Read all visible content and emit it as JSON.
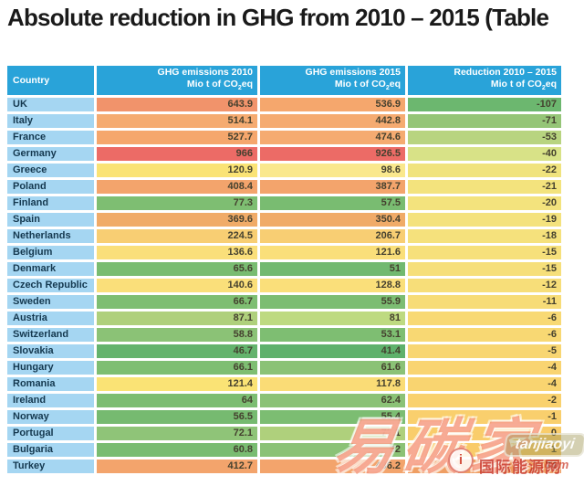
{
  "title": "Absolute reduction in GHG from 2010 – 2015 (Table",
  "colors": {
    "header_bg": "#29A3D9",
    "country_cell_bg": "#A5D6F2",
    "page_bg": "#FFFFFF",
    "title_color": "#1A1A1A"
  },
  "table": {
    "headers": {
      "country": "Country",
      "col2010_line1": "GHG emissions 2010",
      "col2015_line1": "GHG emissions 2015",
      "colred_line1": "Reduction 2010 – 2015",
      "unit_prefix": "Mio t of CO",
      "unit_sub": "2",
      "unit_suffix": "eq"
    },
    "rows": [
      {
        "country": "UK",
        "v2010": "643.9",
        "v2015": "536.9",
        "vred": "-107",
        "c2010": "#F1936B",
        "c2015": "#F5A76D",
        "cred": "#6CB76F"
      },
      {
        "country": "Italy",
        "v2010": "514.1",
        "v2015": "442.8",
        "vred": "-71",
        "c2010": "#F5AB71",
        "c2015": "#F5AB71",
        "cred": "#95C577"
      },
      {
        "country": "France",
        "v2010": "527.7",
        "v2015": "474.6",
        "vred": "-53",
        "c2010": "#F5A76D",
        "c2015": "#F5AB71",
        "cred": "#B8D480"
      },
      {
        "country": "Germany",
        "v2010": "966",
        "v2015": "926.5",
        "vred": "-40",
        "c2010": "#EC6B66",
        "c2015": "#EC6B66",
        "cred": "#D8E287"
      },
      {
        "country": "Greece",
        "v2010": "120.9",
        "v2015": "98.6",
        "vred": "-22",
        "c2010": "#FAE375",
        "c2015": "#FAE88D",
        "cred": "#F0E37E"
      },
      {
        "country": "Poland",
        "v2010": "408.4",
        "v2015": "387.7",
        "vred": "-21",
        "c2010": "#F3A46C",
        "c2015": "#F3A46C",
        "cred": "#F3E37D"
      },
      {
        "country": "Finland",
        "v2010": "77.3",
        "v2015": "57.5",
        "vred": "-20",
        "c2010": "#7EBE72",
        "c2015": "#79BC71",
        "cred": "#F3E37D"
      },
      {
        "country": "Spain",
        "v2010": "369.6",
        "v2015": "350.4",
        "vred": "-19",
        "c2010": "#F0AB68",
        "c2015": "#F0AB68",
        "cred": "#F4E27D"
      },
      {
        "country": "Netherlands",
        "v2010": "224.5",
        "v2015": "206.7",
        "vred": "-18",
        "c2010": "#F8CE73",
        "c2015": "#F8CE73",
        "cred": "#F5E17C"
      },
      {
        "country": "Belgium",
        "v2010": "136.6",
        "v2015": "121.6",
        "vred": "-15",
        "c2010": "#FADF7A",
        "c2015": "#FADF7A",
        "cred": "#F6E07B"
      },
      {
        "country": "Denmark",
        "v2010": "65.6",
        "v2015": "51",
        "vred": "-15",
        "c2010": "#79BC71",
        "c2015": "#72B970",
        "cred": "#F6DF7A"
      },
      {
        "country": "Czech Republic",
        "v2010": "140.6",
        "v2015": "128.8",
        "vred": "-12",
        "c2010": "#FADF7A",
        "c2015": "#FADF7A",
        "cred": "#F7DE79"
      },
      {
        "country": "Sweden",
        "v2010": "66.7",
        "v2015": "55.9",
        "vred": "-11",
        "c2010": "#7EBE72",
        "c2015": "#7CBD72",
        "cred": "#F7DC77"
      },
      {
        "country": "Austria",
        "v2010": "87.1",
        "v2015": "81",
        "vred": "-6",
        "c2010": "#AFD07C",
        "c2015": "#BEDA81",
        "cred": "#F8D974"
      },
      {
        "country": "Switzerland",
        "v2010": "58.8",
        "v2015": "53.1",
        "vred": "-6",
        "c2010": "#8BC276",
        "c2015": "#7EBE72",
        "cred": "#F8D873"
      },
      {
        "country": "Slovakia",
        "v2010": "46.7",
        "v2015": "41.4",
        "vred": "-5",
        "c2010": "#64B36D",
        "c2015": "#5FB16C",
        "cred": "#F8D672"
      },
      {
        "country": "Hungary",
        "v2010": "66.1",
        "v2015": "61.6",
        "vred": "-4",
        "c2010": "#7EBE72",
        "c2015": "#8BC276",
        "cred": "#F9D471"
      },
      {
        "country": "Romania",
        "v2010": "121.4",
        "v2015": "117.8",
        "vred": "-4",
        "c2010": "#FAE375",
        "c2015": "#FADC76",
        "cred": "#F9D470"
      },
      {
        "country": "Ireland",
        "v2010": "64",
        "v2015": "62.4",
        "vred": "-2",
        "c2010": "#7CBD72",
        "c2015": "#8BC276",
        "cred": "#F9D16E"
      },
      {
        "country": "Norway",
        "v2010": "56.5",
        "v2015": "55.4",
        "vred": "-1",
        "c2010": "#76BA70",
        "c2015": "#7CBD72",
        "cred": "#F9CF6D"
      },
      {
        "country": "Portugal",
        "v2010": "72.1",
        "v2015": "72.1",
        "vred": "0",
        "c2010": "#8FC478",
        "c2015": "#AFD07C",
        "cred": "#F9CD6B"
      },
      {
        "country": "Bulgaria",
        "v2010": "60.8",
        "v2015": "62",
        "vred": "1",
        "c2010": "#79BC71",
        "c2015": "#8BC276",
        "cred": "#F9CB69"
      },
      {
        "country": "Turkey",
        "v2010": "412.7",
        "v2015": "486.2",
        "vred": "74",
        "c2010": "#F3A46C",
        "c2015": "#F3A46C",
        "cred": "#EF9E63"
      }
    ]
  },
  "watermark": {
    "brand": "易碳家",
    "info_glyph": "i",
    "tagline": "国际能源网",
    "site": "tanjiaoyi",
    "domain_suffix": ".com"
  },
  "chart_data": {
    "type": "table",
    "title": "Absolute reduction in GHG from 2010 – 2015 (Table",
    "columns": [
      "Country",
      "GHG emissions 2010 Mio t of CO2eq",
      "GHG emissions 2015 Mio t of CO2eq",
      "Reduction 2010 – 2015 Mio t of CO2eq"
    ],
    "categories": [
      "UK",
      "Italy",
      "France",
      "Germany",
      "Greece",
      "Poland",
      "Finland",
      "Spain",
      "Netherlands",
      "Belgium",
      "Denmark",
      "Czech Republic",
      "Sweden",
      "Austria",
      "Switzerland",
      "Slovakia",
      "Hungary",
      "Romania",
      "Ireland",
      "Norway",
      "Portugal",
      "Bulgaria",
      "Turkey"
    ],
    "series": [
      {
        "name": "GHG emissions 2010",
        "values": [
          643.9,
          514.1,
          527.7,
          966,
          120.9,
          408.4,
          77.3,
          369.6,
          224.5,
          136.6,
          65.6,
          140.6,
          66.7,
          87.1,
          58.8,
          46.7,
          66.1,
          121.4,
          64,
          56.5,
          72.1,
          60.8,
          412.7
        ]
      },
      {
        "name": "GHG emissions 2015",
        "values": [
          536.9,
          442.8,
          474.6,
          926.5,
          98.6,
          387.7,
          57.5,
          350.4,
          206.7,
          121.6,
          51,
          128.8,
          55.9,
          81,
          53.1,
          41.4,
          61.6,
          117.8,
          62.4,
          55.4,
          72.1,
          62,
          486.2
        ]
      },
      {
        "name": "Reduction 2010 – 2015",
        "values": [
          -107,
          -71,
          -53,
          -40,
          -22,
          -21,
          -20,
          -19,
          -18,
          -15,
          -15,
          -12,
          -11,
          -6,
          -6,
          -5,
          -4,
          -4,
          -2,
          -1,
          0,
          1,
          74
        ]
      }
    ],
    "legend_position": "none",
    "grid": false,
    "color_encoding": "cell background heatmap: red=high emissions, green=low emissions / large reduction, yellow=middle"
  }
}
